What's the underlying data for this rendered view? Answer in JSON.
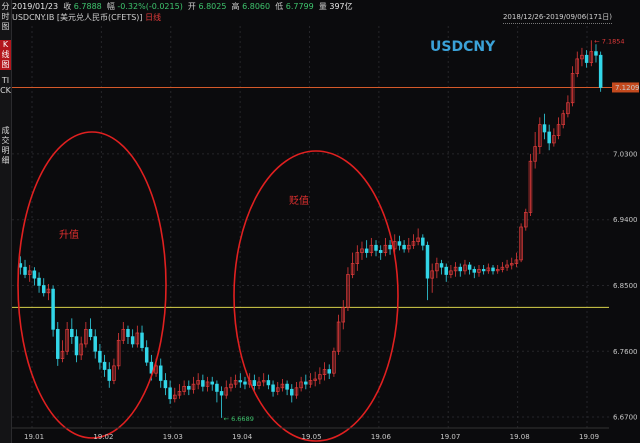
{
  "sidebar": {
    "items": [
      {
        "label": "分时图",
        "active": false
      },
      {
        "label": "K线图",
        "active": true
      },
      {
        "label": "TICK",
        "active": false
      },
      {
        "label": "成交明细",
        "active": false
      }
    ]
  },
  "header": {
    "date": "2019/01/23",
    "close_label": "收",
    "close": "6.7888",
    "change_label": "幅",
    "change": "-0.32%(-0.0215)",
    "open_label": "开",
    "open": "6.8025",
    "high_label": "高",
    "high": "6.8060",
    "low_label": "低",
    "low": "6.7799",
    "volume_label": "量",
    "volume": "397亿",
    "instrument": "USDCNY.IB [美元兑人民币(CFETS)]",
    "period": "日线",
    "range": "2018/12/26-2019/09/06(171日)"
  },
  "chart_data": {
    "type": "candlestick",
    "title": "USDCNY",
    "y_ticks": [
      "7.1209",
      "7.0300",
      "6.9400",
      "6.8500",
      "6.7600",
      "6.6700"
    ],
    "ylim": [
      6.655,
      7.205
    ],
    "x_ticks": [
      "19.01",
      "19.02",
      "19.03",
      "19.04",
      "19.05",
      "19.06",
      "19.07",
      "19.08",
      "19.09"
    ],
    "current_price": 7.1209,
    "reference_level": 6.82,
    "annotations": [
      {
        "text": "升值",
        "region": "first circle"
      },
      {
        "text": "贬值",
        "region": "second circle"
      },
      {
        "text": "6.6689",
        "type": "low marker"
      },
      {
        "text": "7.1854",
        "type": "high marker"
      }
    ],
    "candles": [
      [
        6.88,
        6.875,
        6.89,
        6.865
      ],
      [
        6.875,
        6.865,
        6.885,
        6.86
      ],
      [
        6.865,
        6.87,
        6.878,
        6.855
      ],
      [
        6.87,
        6.86,
        6.875,
        6.85
      ],
      [
        6.86,
        6.85,
        6.868,
        6.84
      ],
      [
        6.85,
        6.84,
        6.86,
        6.835
      ],
      [
        6.84,
        6.845,
        6.852,
        6.83
      ],
      [
        6.845,
        6.79,
        6.85,
        6.78
      ],
      [
        6.79,
        6.75,
        6.8,
        6.74
      ],
      [
        6.75,
        6.76,
        6.775,
        6.745
      ],
      [
        6.76,
        6.79,
        6.8,
        6.755
      ],
      [
        6.79,
        6.78,
        6.805,
        6.77
      ],
      [
        6.78,
        6.755,
        6.79,
        6.745
      ],
      [
        6.755,
        6.77,
        6.78,
        6.748
      ],
      [
        6.77,
        6.79,
        6.8,
        6.765
      ],
      [
        6.79,
        6.78,
        6.805,
        6.775
      ],
      [
        6.78,
        6.76,
        6.79,
        6.75
      ],
      [
        6.76,
        6.745,
        6.77,
        6.735
      ],
      [
        6.745,
        6.735,
        6.755,
        6.725
      ],
      [
        6.735,
        6.72,
        6.745,
        6.71
      ],
      [
        6.72,
        6.74,
        6.75,
        6.715
      ],
      [
        6.74,
        6.775,
        6.785,
        6.735
      ],
      [
        6.775,
        6.79,
        6.8,
        6.77
      ],
      [
        6.79,
        6.78,
        6.795,
        6.77
      ],
      [
        6.78,
        6.77,
        6.79,
        6.765
      ],
      [
        6.77,
        6.785,
        6.795,
        6.765
      ],
      [
        6.785,
        6.765,
        6.795,
        6.76
      ],
      [
        6.765,
        6.745,
        6.775,
        6.74
      ],
      [
        6.745,
        6.73,
        6.755,
        6.72
      ],
      [
        6.73,
        6.74,
        6.75,
        6.725
      ],
      [
        6.74,
        6.72,
        6.75,
        6.71
      ],
      [
        6.72,
        6.71,
        6.73,
        6.7
      ],
      [
        6.71,
        6.695,
        6.72,
        6.688
      ],
      [
        6.695,
        6.7,
        6.71,
        6.69
      ],
      [
        6.7,
        6.705,
        6.715,
        6.695
      ],
      [
        6.705,
        6.712,
        6.72,
        6.7
      ],
      [
        6.712,
        6.708,
        6.72,
        6.7
      ],
      [
        6.708,
        6.715,
        6.725,
        6.702
      ],
      [
        6.715,
        6.72,
        6.73,
        6.708
      ],
      [
        6.72,
        6.712,
        6.728,
        6.705
      ],
      [
        6.712,
        6.718,
        6.725,
        6.705
      ],
      [
        6.718,
        6.715,
        6.725,
        6.706
      ],
      [
        6.715,
        6.705,
        6.72,
        6.69
      ],
      [
        6.705,
        6.7,
        6.712,
        6.6689
      ],
      [
        6.7,
        6.71,
        6.72,
        6.695
      ],
      [
        6.71,
        6.715,
        6.725,
        6.705
      ],
      [
        6.715,
        6.72,
        6.728,
        6.71
      ],
      [
        6.72,
        6.718,
        6.73,
        6.71
      ],
      [
        6.718,
        6.715,
        6.725,
        6.708
      ],
      [
        6.715,
        6.72,
        6.73,
        6.71
      ],
      [
        6.72,
        6.713,
        6.728,
        6.705
      ],
      [
        6.713,
        6.718,
        6.725,
        6.708
      ],
      [
        6.718,
        6.72,
        6.73,
        6.712
      ],
      [
        6.72,
        6.714,
        6.728,
        6.708
      ],
      [
        6.714,
        6.705,
        6.72,
        6.698
      ],
      [
        6.705,
        6.71,
        6.718,
        6.7
      ],
      [
        6.71,
        6.715,
        6.722,
        6.705
      ],
      [
        6.715,
        6.708,
        6.72,
        6.7
      ],
      [
        6.708,
        6.7,
        6.715,
        6.69
      ],
      [
        6.7,
        6.71,
        6.718,
        6.695
      ],
      [
        6.71,
        6.718,
        6.725,
        6.705
      ],
      [
        6.718,
        6.715,
        6.728,
        6.708
      ],
      [
        6.715,
        6.72,
        6.73,
        6.71
      ],
      [
        6.72,
        6.722,
        6.732,
        6.712
      ],
      [
        6.722,
        6.728,
        6.738,
        6.715
      ],
      [
        6.728,
        6.735,
        6.745,
        6.72
      ],
      [
        6.735,
        6.73,
        6.742,
        6.722
      ],
      [
        6.73,
        6.76,
        6.765,
        6.725
      ],
      [
        6.76,
        6.8,
        6.81,
        6.755
      ],
      [
        6.8,
        6.82,
        6.83,
        6.79
      ],
      [
        6.82,
        6.865,
        6.875,
        6.815
      ],
      [
        6.865,
        6.88,
        6.895,
        6.86
      ],
      [
        6.88,
        6.895,
        6.905,
        6.87
      ],
      [
        6.895,
        6.9,
        6.91,
        6.885
      ],
      [
        6.9,
        6.895,
        6.912,
        6.888
      ],
      [
        6.895,
        6.905,
        6.915,
        6.89
      ],
      [
        6.905,
        6.898,
        6.912,
        6.89
      ],
      [
        6.898,
        6.895,
        6.905,
        6.885
      ],
      [
        6.895,
        6.905,
        6.915,
        6.89
      ],
      [
        6.905,
        6.9,
        6.912,
        6.892
      ],
      [
        6.9,
        6.91,
        6.92,
        6.895
      ],
      [
        6.91,
        6.905,
        6.918,
        6.898
      ],
      [
        6.905,
        6.9,
        6.912,
        6.895
      ],
      [
        6.9,
        6.905,
        6.915,
        6.895
      ],
      [
        6.905,
        6.91,
        6.92,
        6.9
      ],
      [
        6.91,
        6.915,
        6.928,
        6.905
      ],
      [
        6.915,
        6.905,
        6.92,
        6.898
      ],
      [
        6.905,
        6.86,
        6.91,
        6.83
      ],
      [
        6.86,
        6.87,
        6.88,
        6.84
      ],
      [
        6.87,
        6.88,
        6.888,
        6.86
      ],
      [
        6.88,
        6.875,
        6.885,
        6.865
      ],
      [
        6.875,
        6.865,
        6.88,
        6.855
      ],
      [
        6.865,
        6.87,
        6.878,
        6.86
      ],
      [
        6.87,
        6.875,
        6.882,
        6.862
      ],
      [
        6.875,
        6.87,
        6.88,
        6.862
      ],
      [
        6.87,
        6.878,
        6.885,
        6.865
      ],
      [
        6.878,
        6.872,
        6.882,
        6.865
      ],
      [
        6.872,
        6.868,
        6.876,
        6.86
      ],
      [
        6.868,
        6.872,
        6.878,
        6.862
      ],
      [
        6.872,
        6.87,
        6.878,
        6.865
      ],
      [
        6.87,
        6.874,
        6.88,
        6.866
      ],
      [
        6.874,
        6.87,
        6.878,
        6.865
      ],
      [
        6.87,
        6.872,
        6.878,
        6.866
      ],
      [
        6.872,
        6.875,
        6.882,
        6.868
      ],
      [
        6.875,
        6.878,
        6.885,
        6.87
      ],
      [
        6.878,
        6.88,
        6.888,
        6.872
      ],
      [
        6.88,
        6.885,
        6.895,
        6.875
      ],
      [
        6.885,
        6.93,
        6.935,
        6.882
      ],
      [
        6.93,
        6.95,
        6.955,
        6.925
      ],
      [
        6.95,
        7.02,
        7.03,
        6.945
      ],
      [
        7.02,
        7.04,
        7.06,
        7.01
      ],
      [
        7.04,
        7.07,
        7.08,
        7.03
      ],
      [
        7.07,
        7.06,
        7.085,
        7.05
      ],
      [
        7.06,
        7.045,
        7.07,
        7.035
      ],
      [
        7.045,
        7.055,
        7.065,
        7.04
      ],
      [
        7.055,
        7.07,
        7.08,
        7.05
      ],
      [
        7.07,
        7.085,
        7.09,
        7.065
      ],
      [
        7.085,
        7.1,
        7.11,
        7.08
      ],
      [
        7.1,
        7.14,
        7.15,
        7.095
      ],
      [
        7.14,
        7.16,
        7.17,
        7.135
      ],
      [
        7.16,
        7.165,
        7.175,
        7.15
      ],
      [
        7.165,
        7.155,
        7.172,
        7.148
      ],
      [
        7.155,
        7.17,
        7.1854,
        7.15
      ],
      [
        7.17,
        7.165,
        7.18,
        7.155
      ],
      [
        7.165,
        7.1209,
        7.17,
        7.115
      ]
    ]
  }
}
